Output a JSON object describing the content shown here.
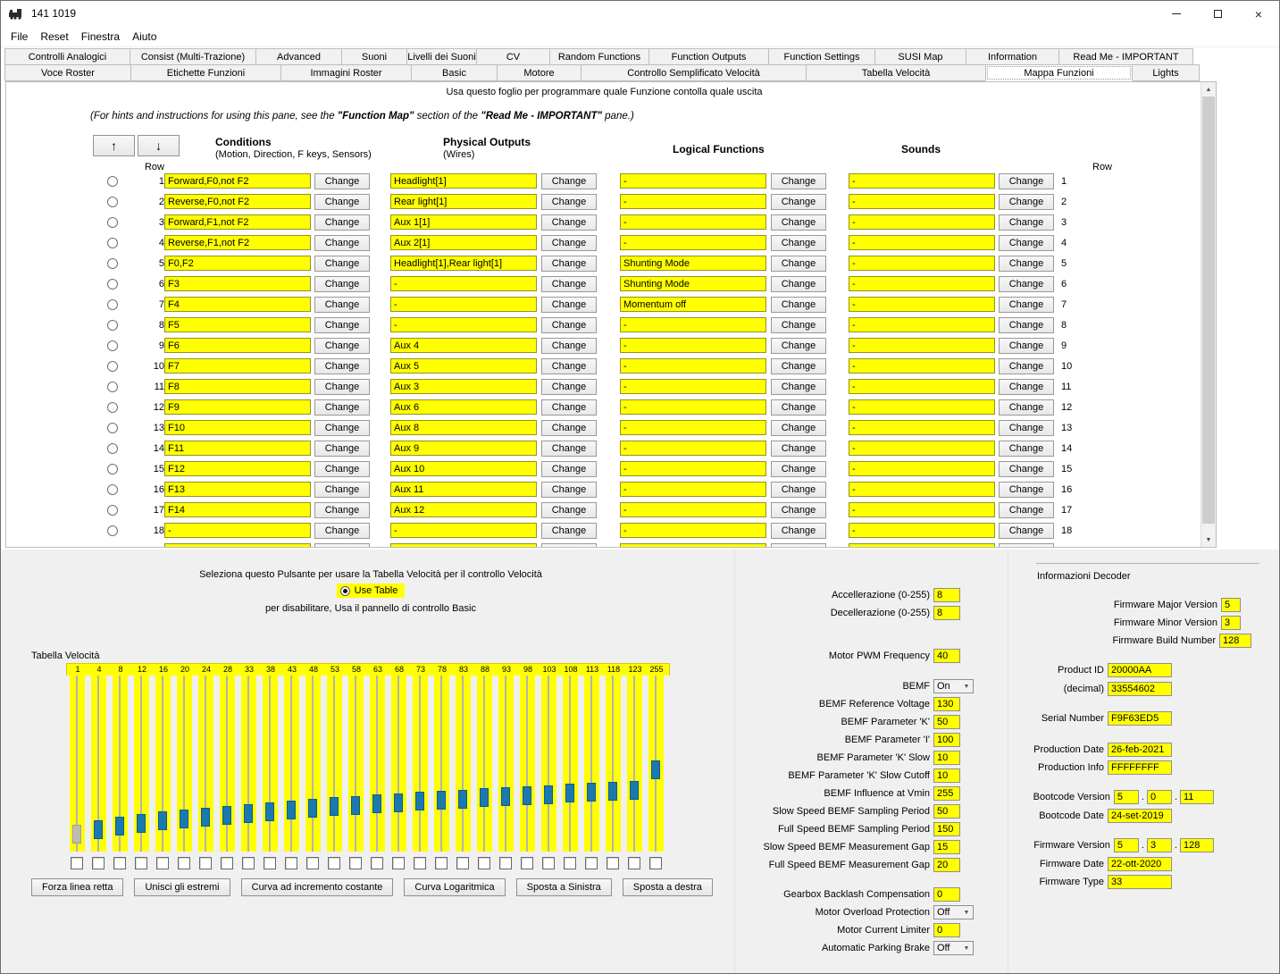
{
  "window": {
    "title": "141 1019"
  },
  "menu": [
    "File",
    "Reset",
    "Finestra",
    "Aiuto"
  ],
  "tabs": {
    "row1": [
      "Controlli Analogici",
      "Consist (Multi-Trazione)",
      "Advanced",
      "Suoni",
      "Livelli dei Suoni",
      "CV",
      "Random Functions",
      "Function Outputs",
      "Function Settings",
      "SUSI Map",
      "Information",
      "Read Me - IMPORTANT"
    ],
    "row2": [
      "Voce Roster",
      "Etichette Funzioni",
      "Immagini Roster",
      "Basic",
      "Motore",
      "Controllo Semplificato Velocità",
      "Tabella Velocità",
      "Mappa Funzioni",
      "Lights"
    ],
    "selected": "Mappa Funzioni"
  },
  "function_map": {
    "instruction": "Usa questo foglio per programmare quale Funzione contolla quale uscita",
    "hint": {
      "prefix": "(For hints and instructions for using this pane, see the ",
      "bold1": "\"Function Map\"",
      "mid": " section of the ",
      "bold2": "\"Read Me - IMPORTANT\"",
      "suffix": " pane.)"
    },
    "row_label": "Row",
    "headers": {
      "conditions": "Conditions",
      "conditions_sub": "(Motion, Direction, F keys, Sensors)",
      "outputs": "Physical Outputs",
      "outputs_sub": "(Wires)",
      "logical": "Logical Functions",
      "sounds": "Sounds"
    },
    "change_label": "Change",
    "rows": [
      {
        "num": 1,
        "condition": "Forward,F0,not F2",
        "output": "Headlight[1]",
        "logical": "-",
        "sound": "-"
      },
      {
        "num": 2,
        "condition": "Reverse,F0,not F2",
        "output": "Rear light[1]",
        "logical": "-",
        "sound": "-"
      },
      {
        "num": 3,
        "condition": "Forward,F1,not F2",
        "output": "Aux 1[1]",
        "logical": "-",
        "sound": "-"
      },
      {
        "num": 4,
        "condition": "Reverse,F1,not F2",
        "output": "Aux 2[1]",
        "logical": "-",
        "sound": "-"
      },
      {
        "num": 5,
        "condition": "F0,F2",
        "output": "Headlight[1],Rear light[1]",
        "logical": "Shunting Mode",
        "sound": "-"
      },
      {
        "num": 6,
        "condition": "F3",
        "output": "-",
        "logical": "Shunting Mode",
        "sound": "-"
      },
      {
        "num": 7,
        "condition": "F4",
        "output": "-",
        "logical": "Momentum off",
        "sound": "-"
      },
      {
        "num": 8,
        "condition": "F5",
        "output": "-",
        "logical": "-",
        "sound": "-"
      },
      {
        "num": 9,
        "condition": "F6",
        "output": "Aux 4",
        "logical": "-",
        "sound": "-"
      },
      {
        "num": 10,
        "condition": "F7",
        "output": "Aux 5",
        "logical": "-",
        "sound": "-"
      },
      {
        "num": 11,
        "condition": "F8",
        "output": "Aux 3",
        "logical": "-",
        "sound": "-"
      },
      {
        "num": 12,
        "condition": "F9",
        "output": "Aux 6",
        "logical": "-",
        "sound": "-"
      },
      {
        "num": 13,
        "condition": "F10",
        "output": "Aux 8",
        "logical": "-",
        "sound": "-"
      },
      {
        "num": 14,
        "condition": "F11",
        "output": "Aux 9",
        "logical": "-",
        "sound": "-"
      },
      {
        "num": 15,
        "condition": "F12",
        "output": "Aux 10",
        "logical": "-",
        "sound": "-"
      },
      {
        "num": 16,
        "condition": "F13",
        "output": "Aux 11",
        "logical": "-",
        "sound": "-"
      },
      {
        "num": 17,
        "condition": "F14",
        "output": "Aux 12",
        "logical": "-",
        "sound": "-"
      },
      {
        "num": 18,
        "condition": "-",
        "output": "-",
        "logical": "-",
        "sound": "-"
      }
    ]
  },
  "speed_panel": {
    "instruction_top": "Seleziona questo Pulsante per usare la Tabella Velocità per il controllo Velocità",
    "radio_label": "Use Table",
    "radio_selected": true,
    "instruction_bottom": "per disabilitare, Usa il pannello di controllo Basic",
    "table_label": "Tabella Velocità",
    "values": [
      1,
      4,
      8,
      12,
      16,
      20,
      24,
      28,
      33,
      38,
      43,
      48,
      53,
      58,
      63,
      68,
      73,
      78,
      83,
      88,
      93,
      98,
      103,
      108,
      113,
      118,
      123,
      255
    ],
    "checkboxes_checked": false,
    "buttons": [
      "Forza linea retta",
      "Unisci gli estremi",
      "Curva ad incremento costante",
      "Curva Logaritmica",
      "Sposta a Sinistra",
      "Sposta a destra"
    ]
  },
  "motor_panel": {
    "fields": [
      {
        "label": "Accellerazione (0-255)",
        "value": "8",
        "type": "text"
      },
      {
        "label": "Decellerazione (0-255)",
        "value": "8",
        "type": "text"
      },
      {
        "label": "Motor PWM Frequency",
        "value": "40",
        "type": "text",
        "gap": "g28"
      },
      {
        "label": "BEMF",
        "value": "On",
        "type": "select",
        "gap": "g14"
      },
      {
        "label": "BEMF Reference Voltage",
        "value": "130",
        "type": "text"
      },
      {
        "label": "BEMF Parameter 'K'",
        "value": "50",
        "type": "text"
      },
      {
        "label": "BEMF Parameter 'I'",
        "value": "100",
        "type": "text"
      },
      {
        "label": "BEMF Parameter 'K' Slow",
        "value": "10",
        "type": "text"
      },
      {
        "label": "BEMF Parameter 'K' Slow Cutoff",
        "value": "10",
        "type": "text"
      },
      {
        "label": "BEMF Influence at Vmin",
        "value": "255",
        "type": "text"
      },
      {
        "label": "Slow Speed BEMF Sampling Period",
        "value": "50",
        "type": "text"
      },
      {
        "label": "Full Speed BEMF Sampling Period",
        "value": "150",
        "type": "text"
      },
      {
        "label": "Slow Speed BEMF Measurement Gap",
        "value": "15",
        "type": "text"
      },
      {
        "label": "Full Speed BEMF Measurement Gap",
        "value": "20",
        "type": "text"
      },
      {
        "label": "Gearbox Backlash Compensation",
        "value": "0",
        "type": "text",
        "gap": "g13"
      },
      {
        "label": "Motor Overload Protection",
        "value": "Off",
        "type": "select"
      },
      {
        "label": "Motor Current Limiter",
        "value": "0",
        "type": "text"
      },
      {
        "label": "Automatic Parking Brake",
        "value": "Off",
        "type": "select"
      }
    ]
  },
  "decoder_info": {
    "title": "Informazioni Decoder",
    "firmware_major": {
      "label": "Firmware Major Version",
      "value": "5"
    },
    "firmware_minor": {
      "label": "Firmware Minor Version",
      "value": "3"
    },
    "firmware_build": {
      "label": "Firmware Build Number",
      "value": "128"
    },
    "product_id": {
      "label": "Product ID",
      "value": "20000AA"
    },
    "product_id_decimal": {
      "label": "(decimal)",
      "value": "33554602"
    },
    "serial_number": {
      "label": "Serial Number",
      "value": "F9F63ED5"
    },
    "production_date": {
      "label": "Production Date",
      "value": "26-feb-2021"
    },
    "production_info": {
      "label": "Production Info",
      "value": "FFFFFFFF"
    },
    "bootcode_version": {
      "label": "Bootcode Version",
      "major": "5",
      "minor": "0",
      "build": "11"
    },
    "bootcode_date": {
      "label": "Bootcode Date",
      "value": "24-set-2019"
    },
    "firmware_version": {
      "label": "Firmware Version",
      "major": "5",
      "minor": "3",
      "build": "128"
    },
    "firmware_date": {
      "label": "Firmware Date",
      "value": "22-ott-2020"
    },
    "firmware_type": {
      "label": "Firmware Type",
      "value": "33"
    }
  }
}
